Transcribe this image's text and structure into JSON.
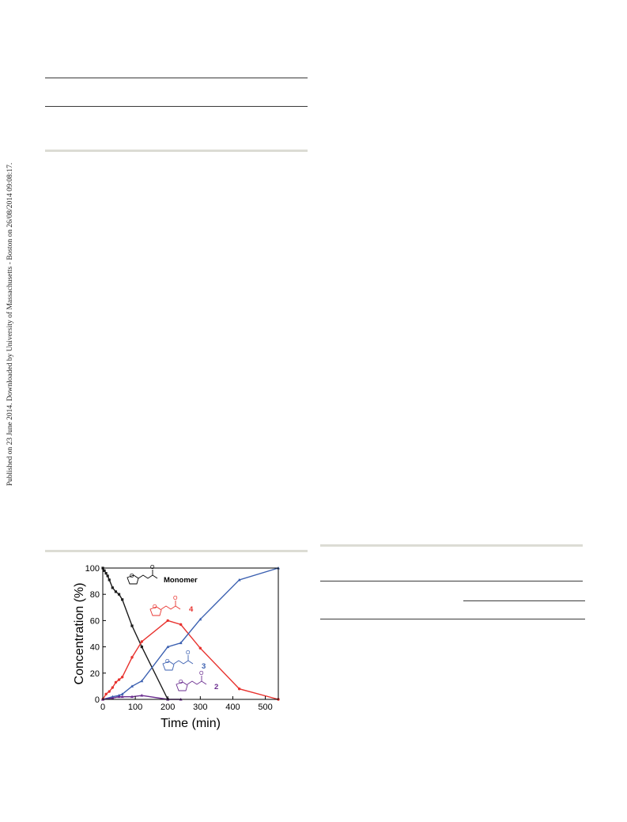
{
  "side_note": "Published on 23 June 2014. Downloaded by University of Massachusetts - Boston on 26/08/2014 09:08:17.",
  "chart_data": {
    "type": "line",
    "xlabel": "Time (min)",
    "ylabel": "Concentration (%)",
    "xlim": [
      0,
      540
    ],
    "ylim": [
      0,
      100
    ],
    "xticks": [
      0,
      100,
      200,
      300,
      400,
      500
    ],
    "yticks": [
      0,
      20,
      40,
      60,
      80,
      100
    ],
    "grid": false,
    "legend": "inline structure labels",
    "series": [
      {
        "name": "Monomer",
        "color": "#1a1a1a",
        "marker": "square",
        "x": [
          0,
          5,
          10,
          15,
          20,
          30,
          40,
          50,
          60,
          90,
          120,
          200
        ],
        "y": [
          100,
          98,
          96,
          94,
          91,
          85,
          82,
          80,
          76,
          56,
          40,
          0
        ]
      },
      {
        "name": "4",
        "color": "#e8332f",
        "marker": "circle",
        "x": [
          0,
          10,
          20,
          30,
          40,
          50,
          60,
          90,
          120,
          200,
          240,
          300,
          420,
          540
        ],
        "y": [
          0,
          4,
          6,
          9,
          13,
          15,
          17,
          32,
          44,
          60,
          57,
          39,
          8,
          0
        ]
      },
      {
        "name": "3",
        "color": "#3a5fb0",
        "marker": "triangle",
        "x": [
          0,
          30,
          50,
          60,
          90,
          120,
          200,
          240,
          300,
          420,
          540
        ],
        "y": [
          0,
          2,
          3,
          4,
          10,
          14,
          40,
          43,
          61,
          91,
          100
        ]
      },
      {
        "name": "2",
        "color": "#6a2d8f",
        "marker": "triangle",
        "x": [
          0,
          30,
          50,
          60,
          90,
          120,
          200,
          240
        ],
        "y": [
          0,
          1,
          2,
          2,
          2,
          3,
          0,
          0
        ]
      }
    ]
  }
}
